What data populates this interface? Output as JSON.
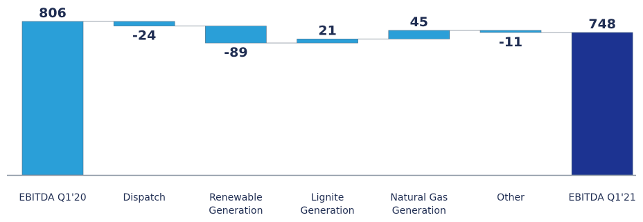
{
  "chart_data": {
    "type": "waterfall",
    "title": "",
    "xlabel": "",
    "ylabel": "",
    "ylim": [
      0,
      806
    ],
    "categories": [
      [
        "EBITDA Q1'20"
      ],
      [
        "Dispatch"
      ],
      [
        "Renewable",
        "Generation"
      ],
      [
        "Lignite",
        "Generation"
      ],
      [
        "Natural Gas",
        "Generation"
      ],
      [
        "Other"
      ],
      [
        "EBITDA Q1'21"
      ]
    ],
    "values": [
      806,
      -24,
      -89,
      21,
      45,
      -11,
      748
    ],
    "value_labels": [
      "806",
      "-24",
      "-89",
      "21",
      "45",
      "-11",
      "748"
    ],
    "kinds": [
      "total",
      "delta",
      "delta",
      "delta",
      "delta",
      "delta",
      "total"
    ],
    "colors": {
      "start_total": "#2a9fd8",
      "delta": "#2a9fd8",
      "end_total": "#1c3391",
      "label": "#1f2d52",
      "connector": "#9aa3ad",
      "baseline": "#8a95a3"
    },
    "grid": false,
    "legend": "none"
  }
}
